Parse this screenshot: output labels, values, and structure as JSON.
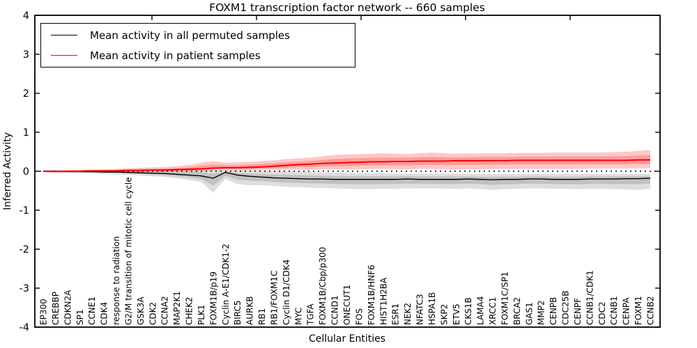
{
  "title": "FOXM1 transcription factor network -- 660 samples",
  "legend": {
    "position": "upper-left",
    "items": [
      {
        "label": "Mean activity in all permuted samples",
        "color": "#000000"
      },
      {
        "label": "Mean activity in patient samples",
        "color": "#ff0000"
      }
    ]
  },
  "chart_data": {
    "type": "line",
    "title": "FOXM1 transcription factor network -- 660 samples",
    "xlabel": "Cellular Entities",
    "ylabel": "Inferred Activity",
    "ylim": [
      -4,
      4
    ],
    "yticks": [
      4,
      3,
      2,
      1,
      0,
      -1,
      -2,
      -3,
      -4
    ],
    "grid": false,
    "zero_line_style": "dotted",
    "legend_position": "upper-left",
    "inner_band_fraction": 0.5,
    "categories": [
      "EP300",
      "CREBBP",
      "CDKN2A",
      "SP1",
      "CCNE1",
      "CDK4",
      "response to radiation",
      "G2/M transition of mitotic cell cycle",
      "GSK3A",
      "CDK2",
      "CCNA2",
      "MAP2K1",
      "CHEK2",
      "PLK1",
      "FOXM1B/p19",
      "Cyclin A-E1/CDK1-2",
      "BIRC5",
      "AURKB",
      "RB1",
      "RB1/FOXM1C",
      "Cyclin D1/CDK4",
      "MYC",
      "TGFA",
      "FOXM1B/Cbp/p300",
      "CCND1",
      "ONECUT1",
      "FOS",
      "FOXM1B/HNF6",
      "HIST1H2BA",
      "ESR1",
      "NEK2",
      "NFATC3",
      "HSPA1B",
      "SKP2",
      "ETV5",
      "CKS1B",
      "LAMA4",
      "XRCC1",
      "FOXM1C/SP1",
      "BRCA2",
      "GAS1",
      "MMP2",
      "CENPB",
      "CDC25B",
      "CENPF",
      "CCNB1/CDK1",
      "CDC2",
      "CCNB1",
      "CENPA",
      "FOXM1",
      "CCNB2"
    ],
    "series": [
      {
        "name": "Mean activity in all permuted samples",
        "color": "#000000",
        "band_color": "rgba(0,0,0,0.13)",
        "line_width": 1.4,
        "values": [
          0.0,
          0.0,
          -0.01,
          -0.01,
          -0.01,
          -0.02,
          -0.02,
          -0.03,
          -0.04,
          -0.05,
          -0.06,
          -0.08,
          -0.1,
          -0.12,
          -0.18,
          -0.03,
          -0.1,
          -0.13,
          -0.15,
          -0.17,
          -0.18,
          -0.19,
          -0.2,
          -0.2,
          -0.21,
          -0.21,
          -0.21,
          -0.21,
          -0.21,
          -0.21,
          -0.2,
          -0.21,
          -0.21,
          -0.21,
          -0.21,
          -0.2,
          -0.21,
          -0.22,
          -0.21,
          -0.21,
          -0.2,
          -0.2,
          -0.21,
          -0.21,
          -0.21,
          -0.2,
          -0.2,
          -0.2,
          -0.19,
          -0.19,
          -0.18
        ],
        "band_low": [
          -0.02,
          -0.03,
          -0.04,
          -0.05,
          -0.06,
          -0.07,
          -0.08,
          -0.09,
          -0.11,
          -0.13,
          -0.15,
          -0.18,
          -0.22,
          -0.28,
          -0.55,
          -0.2,
          -0.33,
          -0.36,
          -0.36,
          -0.38,
          -0.4,
          -0.41,
          -0.42,
          -0.43,
          -0.44,
          -0.45,
          -0.46,
          -0.46,
          -0.45,
          -0.45,
          -0.44,
          -0.44,
          -0.44,
          -0.45,
          -0.45,
          -0.44,
          -0.46,
          -0.48,
          -0.46,
          -0.45,
          -0.44,
          -0.44,
          -0.45,
          -0.45,
          -0.46,
          -0.45,
          -0.45,
          -0.46,
          -0.47,
          -0.48,
          -0.45
        ],
        "band_high": [
          0.02,
          0.02,
          0.02,
          0.02,
          0.03,
          0.03,
          0.03,
          0.03,
          0.04,
          0.04,
          0.05,
          0.06,
          0.08,
          0.08,
          0.05,
          0.02,
          0.02,
          0.01,
          0.01,
          0.0,
          0.0,
          -0.01,
          -0.02,
          -0.03,
          -0.04,
          -0.04,
          -0.05,
          -0.05,
          -0.05,
          -0.06,
          -0.06,
          -0.06,
          -0.06,
          -0.06,
          -0.06,
          -0.07,
          -0.07,
          -0.07,
          -0.07,
          -0.07,
          -0.07,
          -0.07,
          -0.07,
          -0.07,
          -0.07,
          -0.07,
          -0.07,
          -0.07,
          -0.07,
          -0.07,
          -0.07
        ]
      },
      {
        "name": "Mean activity in patient samples",
        "color": "#ff0000",
        "band_color": "rgba(255,0,0,0.22)",
        "line_width": 2.0,
        "values": [
          0.0,
          -0.01,
          0.0,
          0.0,
          0.01,
          0.01,
          0.01,
          0.02,
          0.02,
          0.03,
          0.03,
          0.04,
          0.05,
          0.06,
          0.08,
          0.09,
          0.09,
          0.1,
          0.11,
          0.13,
          0.15,
          0.17,
          0.18,
          0.2,
          0.21,
          0.22,
          0.23,
          0.24,
          0.24,
          0.25,
          0.25,
          0.26,
          0.26,
          0.26,
          0.27,
          0.27,
          0.27,
          0.27,
          0.27,
          0.28,
          0.28,
          0.28,
          0.28,
          0.28,
          0.28,
          0.28,
          0.28,
          0.28,
          0.28,
          0.29,
          0.29
        ],
        "band_low": [
          -0.02,
          -0.03,
          -0.02,
          -0.02,
          -0.02,
          -0.02,
          -0.02,
          -0.01,
          -0.01,
          -0.01,
          -0.01,
          0.0,
          0.0,
          0.01,
          0.03,
          0.02,
          0.02,
          0.02,
          0.02,
          0.03,
          0.03,
          0.04,
          0.04,
          0.05,
          0.05,
          0.05,
          0.05,
          0.06,
          0.06,
          0.05,
          0.05,
          0.06,
          0.06,
          0.05,
          0.05,
          0.05,
          0.05,
          0.06,
          0.06,
          0.06,
          0.06,
          0.06,
          0.06,
          0.06,
          0.06,
          0.07,
          0.07,
          0.07,
          0.07,
          0.08,
          0.08
        ],
        "band_high": [
          0.02,
          0.02,
          0.03,
          0.03,
          0.04,
          0.05,
          0.06,
          0.08,
          0.09,
          0.1,
          0.11,
          0.13,
          0.16,
          0.22,
          0.26,
          0.22,
          0.23,
          0.24,
          0.26,
          0.28,
          0.31,
          0.33,
          0.35,
          0.38,
          0.42,
          0.43,
          0.44,
          0.45,
          0.46,
          0.45,
          0.44,
          0.46,
          0.48,
          0.46,
          0.45,
          0.45,
          0.46,
          0.46,
          0.46,
          0.47,
          0.47,
          0.47,
          0.48,
          0.48,
          0.48,
          0.48,
          0.48,
          0.49,
          0.5,
          0.52,
          0.54
        ]
      }
    ]
  }
}
